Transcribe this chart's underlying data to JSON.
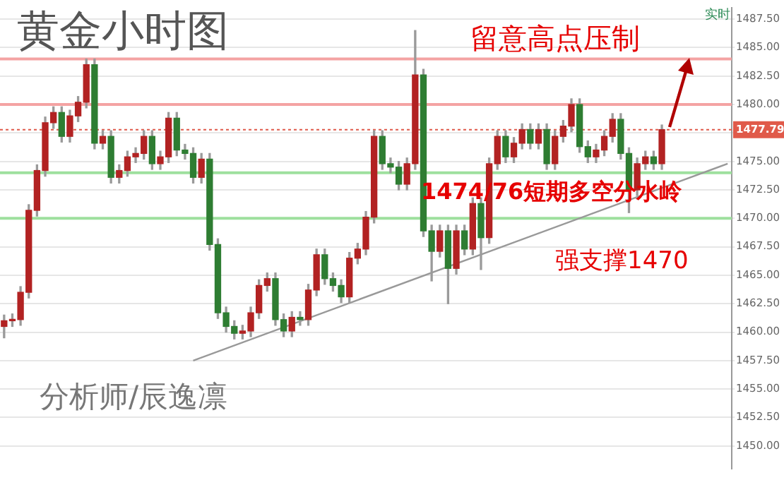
{
  "chart_data": {
    "type": "candlestick",
    "title": "黄金小时图",
    "annotations": [
      "留意高点压制",
      "1474/76短期多空分水岭",
      "强支撑1470",
      "分析师/辰逸凛",
      "实时"
    ],
    "categories": [
      null,
      null,
      null,
      null,
      null,
      null,
      null,
      null,
      null,
      null,
      null,
      null,
      null,
      null,
      null,
      null,
      null,
      null,
      null,
      null,
      null,
      null,
      null,
      null,
      null,
      null,
      null,
      null,
      null,
      null,
      null,
      null,
      null,
      null,
      null,
      null,
      null,
      null,
      null,
      null,
      null,
      null,
      null,
      null,
      null,
      null,
      null,
      null,
      null,
      null,
      null,
      null,
      null,
      null,
      null,
      null,
      null,
      null,
      null,
      null,
      null,
      null,
      null,
      null,
      null,
      null,
      null,
      null,
      null,
      null,
      null,
      null,
      null,
      null,
      null,
      null,
      null,
      null,
      null,
      null,
      null,
      null,
      null,
      null,
      null,
      null,
      null,
      null,
      null
    ],
    "ohlc": [
      [
        1460.5,
        1461.5,
        1459.5,
        1461
      ],
      [
        1461,
        1461.6,
        1460.5,
        1461.1
      ],
      [
        1461.1,
        1464,
        1460.6,
        1463.5
      ],
      [
        1463.5,
        1471.2,
        1463,
        1470.7
      ],
      [
        1470.7,
        1474.7,
        1470.2,
        1474.2
      ],
      [
        1474.2,
        1478.9,
        1473.7,
        1478.4
      ],
      [
        1478.4,
        1479.8,
        1477.9,
        1479.3
      ],
      [
        1479.3,
        1479.8,
        1476.7,
        1477.2
      ],
      [
        1477.2,
        1479.5,
        1476.7,
        1479
      ],
      [
        1479,
        1480.7,
        1478.5,
        1480.2
      ],
      [
        1480.2,
        1484,
        1479.7,
        1483.5
      ],
      [
        1483.5,
        1484,
        1476.1,
        1476.6
      ],
      [
        1476.6,
        1477.7,
        1476.1,
        1477.2
      ],
      [
        1477.2,
        1477.7,
        1473.1,
        1473.6
      ],
      [
        1473.6,
        1474.7,
        1473.1,
        1474.2
      ],
      [
        1474.2,
        1475.9,
        1473.7,
        1475.4
      ],
      [
        1475.4,
        1476.2,
        1474.9,
        1475.7
      ],
      [
        1475.7,
        1477.7,
        1475.2,
        1477.2
      ],
      [
        1477.2,
        1477.7,
        1474.3,
        1474.8
      ],
      [
        1474.8,
        1475.9,
        1474.3,
        1475.4
      ],
      [
        1475.4,
        1479.3,
        1474.9,
        1478.8
      ],
      [
        1478.8,
        1479.3,
        1475.5,
        1476
      ],
      [
        1476,
        1476.5,
        1475.2,
        1475.7
      ],
      [
        1475.7,
        1476.2,
        1473.1,
        1473.6
      ],
      [
        1473.6,
        1475.7,
        1473.1,
        1475.2
      ],
      [
        1475.2,
        1475.7,
        1467.2,
        1467.7
      ],
      [
        1467.7,
        1468.2,
        1461.2,
        1461.7
      ],
      [
        1461.7,
        1462.2,
        1460,
        1460.5
      ],
      [
        1460.5,
        1461,
        1459.4,
        1459.9
      ],
      [
        1459.9,
        1460.6,
        1459.4,
        1460.1
      ],
      [
        1460.1,
        1462.2,
        1459.6,
        1461.7
      ],
      [
        1461.7,
        1464.6,
        1461.2,
        1464.1
      ],
      [
        1464.1,
        1465.2,
        1463.6,
        1464.7
      ],
      [
        1464.7,
        1465.2,
        1460.6,
        1461.1
      ],
      [
        1461.1,
        1461.6,
        1459.6,
        1460.1
      ],
      [
        1460.1,
        1461.8,
        1459.6,
        1461.3
      ],
      [
        1461.3,
        1461.8,
        1460.6,
        1461.1
      ],
      [
        1461.1,
        1464.2,
        1460.6,
        1463.7
      ],
      [
        1463.7,
        1467.3,
        1463.2,
        1466.8
      ],
      [
        1466.8,
        1467.3,
        1464.2,
        1464.7
      ],
      [
        1464.7,
        1465.2,
        1463.6,
        1464.1
      ],
      [
        1464.1,
        1464.6,
        1462.6,
        1463.1
      ],
      [
        1463.1,
        1467,
        1462.6,
        1466.5
      ],
      [
        1466.5,
        1467.8,
        1466,
        1467.3
      ],
      [
        1467.3,
        1470.6,
        1466.8,
        1470.1
      ],
      [
        1470.1,
        1477.7,
        1469.6,
        1477.2
      ],
      [
        1477.2,
        1477.7,
        1474.3,
        1474.8
      ],
      [
        1474.8,
        1475.3,
        1474,
        1474.5
      ],
      [
        1474.5,
        1475,
        1472.5,
        1473
      ],
      [
        1473,
        1475.3,
        1472.5,
        1474.8
      ],
      [
        1474.8,
        1486.5,
        1474.3,
        1482.6
      ],
      [
        1482.6,
        1483.1,
        1468.4,
        1468.9
      ],
      [
        1468.9,
        1469.4,
        1464.5,
        1467.1
      ],
      [
        1467.1,
        1469.4,
        1466.6,
        1468.9
      ],
      [
        1468.9,
        1469.4,
        1462.5,
        1465.6
      ],
      [
        1465.6,
        1469.4,
        1465.1,
        1468.9
      ],
      [
        1468.9,
        1469.4,
        1466.8,
        1467.3
      ],
      [
        1467.3,
        1471.8,
        1466.8,
        1471.3
      ],
      [
        1471.3,
        1471.8,
        1465.5,
        1468.3
      ],
      [
        1468.3,
        1475.3,
        1467.8,
        1474.8
      ],
      [
        1474.8,
        1477.7,
        1474.3,
        1477.2
      ],
      [
        1477.2,
        1477.7,
        1474.9,
        1475.4
      ],
      [
        1475.4,
        1477.1,
        1474.9,
        1476.6
      ],
      [
        1476.6,
        1478.3,
        1476.1,
        1477.8
      ],
      [
        1477.8,
        1478.3,
        1476.1,
        1476.6
      ],
      [
        1476.6,
        1478.3,
        1476.1,
        1477.8
      ],
      [
        1477.8,
        1478.3,
        1474.3,
        1474.8
      ],
      [
        1474.8,
        1477.7,
        1474.3,
        1477.2
      ],
      [
        1477.2,
        1478.6,
        1476.7,
        1478.1
      ],
      [
        1478.1,
        1480.5,
        1477.6,
        1480
      ],
      [
        1480,
        1480.5,
        1475.8,
        1476.3
      ],
      [
        1476.3,
        1476.8,
        1474.9,
        1475.4
      ],
      [
        1475.4,
        1476.5,
        1474.9,
        1476
      ],
      [
        1476,
        1477.7,
        1475.5,
        1477.2
      ],
      [
        1477.2,
        1479.2,
        1476.7,
        1478.7
      ],
      [
        1478.7,
        1479.2,
        1475.2,
        1475.7
      ],
      [
        1475.7,
        1476.2,
        1470.5,
        1472.5
      ],
      [
        1472.5,
        1475.3,
        1472,
        1474.8
      ],
      [
        1474.8,
        1475.9,
        1474.3,
        1475.4
      ],
      [
        1475.4,
        1475.9,
        1474.3,
        1474.8
      ],
      [
        1474.8,
        1478.2,
        1474.3,
        1477.79
      ],
      null,
      null,
      null,
      null,
      null,
      null,
      null,
      null
    ],
    "series": [
      {
        "type": "line",
        "color": "#999999",
        "values": [
          null,
          null,
          null,
          null,
          null,
          null,
          null,
          null,
          null,
          null,
          null,
          null,
          null,
          null,
          null,
          null,
          null,
          null,
          null,
          null,
          null,
          null,
          null,
          1457.5,
          null,
          null,
          null,
          null,
          null,
          null,
          null,
          null,
          null,
          null,
          null,
          null,
          null,
          null,
          null,
          null,
          null,
          null,
          null,
          null,
          null,
          null,
          null,
          null,
          null,
          null,
          null,
          null,
          null,
          null,
          null,
          null,
          null,
          null,
          null,
          null,
          null,
          null,
          null,
          null,
          null,
          null,
          null,
          null,
          null,
          null,
          null,
          null,
          null,
          null,
          null,
          null,
          null,
          null,
          null,
          null,
          null,
          null,
          null,
          null,
          null,
          null,
          null,
          null,
          1474.8
        ]
      }
    ],
    "ylim": [
      1448,
      1488.5
    ],
    "yticks": [
      {
        "value": 1450,
        "label": "1450.00"
      },
      {
        "value": 1452.5,
        "label": "1452.50"
      },
      {
        "value": 1455,
        "label": "1455.00"
      },
      {
        "value": 1457.5,
        "label": "1457.50"
      },
      {
        "value": 1460,
        "label": "1460.00"
      },
      {
        "value": 1462.5,
        "label": "1462.50"
      },
      {
        "value": 1465,
        "label": "1465.00"
      },
      {
        "value": 1467.5,
        "label": "1467.50"
      },
      {
        "value": 1470,
        "label": "1470.00"
      },
      {
        "value": 1472.5,
        "label": "1472.50"
      },
      {
        "value": 1475,
        "label": "1475.00"
      },
      {
        "value": 1477.5,
        "label": null
      },
      {
        "value": 1480,
        "label": "1480.00"
      },
      {
        "value": 1482.5,
        "label": "1482.50"
      },
      {
        "value": 1485,
        "label": "1485.00"
      },
      {
        "value": 1487.5,
        "label": "1487.50"
      }
    ],
    "ref_lines": [
      {
        "axis": "y",
        "value": 1484,
        "color": "#f4a3a3"
      },
      {
        "axis": "y",
        "value": 1480,
        "color": "#f4a3a3"
      },
      {
        "axis": "y",
        "value": 1477.79,
        "label": "1477.79",
        "color": "#e05a4a",
        "line_style": "dotted"
      },
      {
        "axis": "y",
        "value": 1474,
        "color": "#9ee09e"
      },
      {
        "axis": "y",
        "value": 1470,
        "color": "#9ee09e"
      }
    ],
    "grid": "y",
    "legend": false,
    "tick_labels": "y",
    "marker": "none"
  }
}
